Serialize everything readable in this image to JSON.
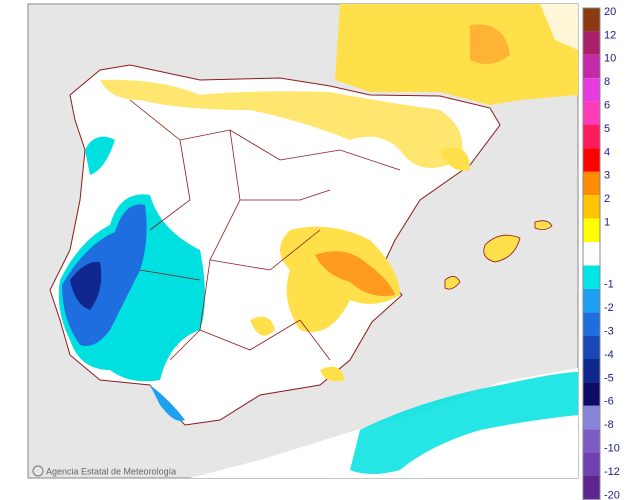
{
  "credit": "Agencia Estatal de Meteorología",
  "legend": [
    {
      "label": 20,
      "color": "#8b3a12"
    },
    {
      "label": 12,
      "color": "#a8206a"
    },
    {
      "label": 10,
      "color": "#c42aa8"
    },
    {
      "label": 8,
      "color": "#e83ae0"
    },
    {
      "label": 6,
      "color": "#ff3cb8"
    },
    {
      "label": 5,
      "color": "#ff1a5a"
    },
    {
      "label": 4,
      "color": "#ff0000"
    },
    {
      "label": 3,
      "color": "#ff8c00"
    },
    {
      "label": 2,
      "color": "#ffc400"
    },
    {
      "label": 1,
      "color": "#ffff00"
    },
    {
      "label": -1,
      "color": "#00e6e6"
    },
    {
      "label": -2,
      "color": "#1ea0f0"
    },
    {
      "label": -3,
      "color": "#1f6ee0"
    },
    {
      "label": -4,
      "color": "#1848b8"
    },
    {
      "label": -5,
      "color": "#10288e"
    },
    {
      "label": -6,
      "color": "#0c0c66"
    },
    {
      "label": -8,
      "color": "#8a84d8"
    },
    {
      "label": -10,
      "color": "#7c5cc4"
    },
    {
      "label": -12,
      "color": "#6e40b0"
    },
    {
      "label": -20,
      "color": "#5e2490"
    }
  ]
}
